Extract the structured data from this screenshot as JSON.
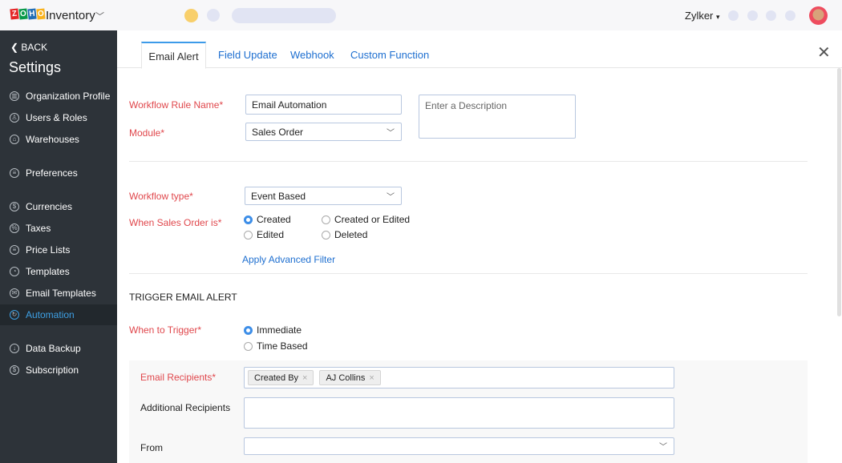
{
  "header": {
    "logo_letters": [
      "Z",
      "O",
      "H",
      "O"
    ],
    "app_name": "Inventory",
    "org_name": "Zylker"
  },
  "sidebar": {
    "back": "BACK",
    "title": "Settings",
    "items": [
      {
        "label": "Organization Profile",
        "icon": "building-icon"
      },
      {
        "label": "Users & Roles",
        "icon": "users-icon"
      },
      {
        "label": "Warehouses",
        "icon": "warehouse-icon"
      },
      {
        "label": "Preferences",
        "icon": "sliders-icon"
      },
      {
        "label": "Currencies",
        "icon": "currency-icon"
      },
      {
        "label": "Taxes",
        "icon": "percent-icon"
      },
      {
        "label": "Price Lists",
        "icon": "list-icon"
      },
      {
        "label": "Templates",
        "icon": "palette-icon"
      },
      {
        "label": "Email Templates",
        "icon": "email-icon"
      },
      {
        "label": "Automation",
        "icon": "sync-icon",
        "active": true
      },
      {
        "label": "Data Backup",
        "icon": "backup-icon"
      },
      {
        "label": "Subscription",
        "icon": "subscription-icon"
      }
    ]
  },
  "tabs": [
    "Email Alert",
    "Field Update",
    "Webhook",
    "Custom Function"
  ],
  "form": {
    "rule_name_label": "Workflow Rule Name*",
    "rule_name_value": "Email Automation",
    "description_placeholder": "Enter a Description",
    "module_label": "Module*",
    "module_value": "Sales Order",
    "type_label": "Workflow type*",
    "type_value": "Event Based",
    "when_label": "When Sales Order is*",
    "when_options": [
      "Created",
      "Created or Edited",
      "Edited",
      "Deleted"
    ],
    "when_selected": "Created",
    "advanced_filter": "Apply Advanced Filter",
    "section_title": "TRIGGER EMAIL ALERT",
    "trigger_label": "When to Trigger*",
    "trigger_options": [
      "Immediate",
      "Time Based"
    ],
    "trigger_selected": "Immediate",
    "recipients_label": "Email Recipients*",
    "recipients": [
      "Created By",
      "AJ Collins"
    ],
    "additional_label": "Additional Recipients",
    "from_label": "From",
    "from_value": ""
  },
  "colors": {
    "sidebar": "#2d3339",
    "active": "#3ea0e4",
    "required_label": "#e0474c",
    "link": "#1e6fd0"
  }
}
